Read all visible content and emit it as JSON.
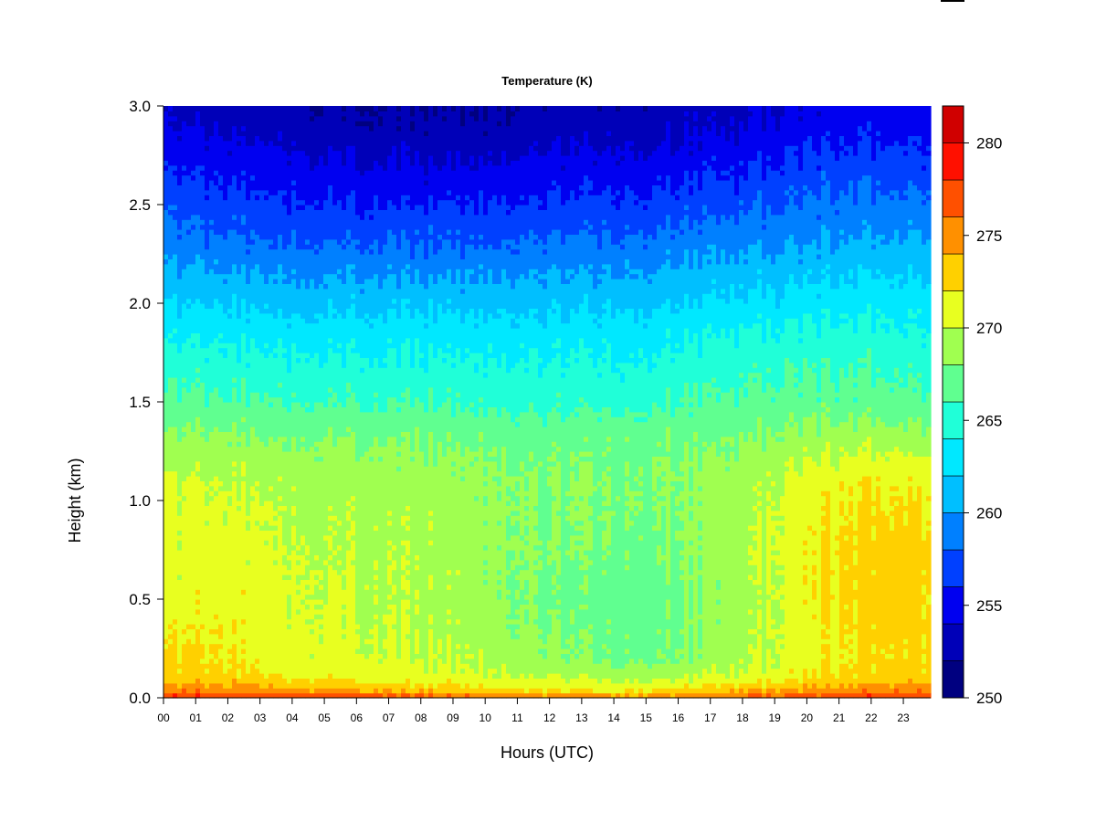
{
  "chart_data": {
    "type": "heatmap",
    "title": "Temperature (K)",
    "xlabel": "Hours (UTC)",
    "ylabel": "Height (km)",
    "x_ticks": [
      "00",
      "01",
      "02",
      "03",
      "04",
      "05",
      "06",
      "07",
      "08",
      "09",
      "10",
      "11",
      "12",
      "13",
      "14",
      "15",
      "16",
      "17",
      "18",
      "19",
      "20",
      "21",
      "22",
      "23"
    ],
    "xlim": [
      0,
      23.85
    ],
    "y_ticks": [
      "0.0",
      "0.5",
      "1.0",
      "1.5",
      "2.0",
      "2.5",
      "3.0"
    ],
    "ylim": [
      0,
      3.0
    ],
    "colorbar": {
      "ticks": [
        "250",
        "255",
        "260",
        "265",
        "270",
        "275",
        "280"
      ],
      "range": [
        250,
        282
      ],
      "levels": [
        250,
        252,
        254,
        256,
        258,
        260,
        262,
        264,
        266,
        268,
        270,
        272,
        274,
        276,
        278,
        280,
        282
      ],
      "colors": [
        "#000080",
        "#0000B8",
        "#0000F0",
        "#0040FF",
        "#0080FF",
        "#00BFFF",
        "#00E8FF",
        "#20FFD8",
        "#60FF90",
        "#A0FF50",
        "#E8FF20",
        "#FFD000",
        "#FF9000",
        "#FF5000",
        "#FF1000",
        "#D00000",
        "#800000"
      ]
    },
    "grid": false,
    "values_note": "",
    "temperature_profile_K": {
      "hours": [
        0,
        2,
        4,
        6,
        8,
        10,
        12,
        14,
        16,
        18,
        20,
        22,
        23.85
      ],
      "heights_km": [
        0.0,
        0.03,
        0.1,
        0.2,
        0.5,
        0.8,
        1.1,
        1.3,
        1.5,
        1.8,
        2.0,
        2.3,
        2.6,
        2.9,
        3.0
      ],
      "values": [
        [
          278.5,
          278.5,
          278.5,
          278.0,
          277.5,
          277.0,
          276.0,
          275.5,
          276.0,
          277.0,
          278.0,
          278.5,
          278.5
        ],
        [
          276.0,
          275.5,
          275.0,
          274.5,
          274.0,
          273.0,
          272.5,
          272.0,
          273.0,
          274.0,
          275.0,
          276.0,
          276.0
        ],
        [
          273.0,
          273.0,
          272.0,
          271.5,
          271.0,
          270.5,
          270.0,
          269.5,
          270.0,
          270.5,
          272.0,
          273.0,
          273.0
        ],
        [
          272.0,
          272.0,
          271.0,
          270.5,
          270.0,
          269.5,
          268.5,
          267.5,
          268.0,
          269.5,
          271.0,
          272.5,
          272.5
        ],
        [
          271.0,
          271.5,
          270.5,
          270.0,
          269.5,
          268.8,
          267.5,
          267.0,
          267.5,
          269.0,
          271.5,
          273.0,
          272.5
        ],
        [
          270.5,
          271.0,
          270.0,
          269.5,
          269.5,
          268.8,
          268.0,
          267.8,
          268.0,
          269.5,
          271.5,
          273.0,
          272.5
        ],
        [
          270.0,
          270.0,
          269.5,
          269.0,
          269.0,
          268.5,
          268.0,
          268.0,
          268.2,
          269.0,
          271.0,
          272.0,
          271.5
        ],
        [
          268.5,
          268.5,
          268.0,
          268.0,
          268.0,
          267.5,
          267.5,
          267.5,
          267.8,
          268.0,
          269.0,
          269.5,
          269.0
        ],
        [
          266.5,
          266.5,
          266.0,
          266.0,
          266.0,
          265.5,
          265.5,
          265.5,
          266.0,
          266.5,
          267.0,
          267.0,
          266.5
        ],
        [
          264.0,
          264.0,
          263.5,
          263.5,
          263.5,
          263.5,
          263.5,
          263.5,
          264.0,
          264.5,
          265.0,
          265.0,
          264.5
        ],
        [
          262.0,
          262.0,
          261.5,
          261.5,
          261.5,
          261.5,
          261.5,
          261.5,
          262.0,
          262.5,
          263.0,
          263.5,
          263.0
        ],
        [
          259.0,
          258.5,
          258.0,
          258.0,
          258.0,
          258.0,
          258.5,
          258.5,
          259.0,
          259.5,
          260.0,
          260.5,
          260.5
        ],
        [
          256.5,
          256.0,
          255.5,
          255.0,
          255.0,
          255.0,
          255.5,
          255.5,
          256.0,
          256.5,
          257.5,
          258.0,
          257.5
        ],
        [
          254.0,
          253.5,
          253.0,
          252.5,
          252.5,
          252.5,
          253.0,
          253.0,
          253.5,
          254.0,
          255.0,
          255.5,
          255.0
        ],
        [
          253.5,
          253.0,
          252.5,
          252.0,
          252.0,
          252.0,
          252.5,
          252.5,
          253.0,
          253.5,
          254.5,
          255.0,
          254.5
        ]
      ]
    }
  }
}
